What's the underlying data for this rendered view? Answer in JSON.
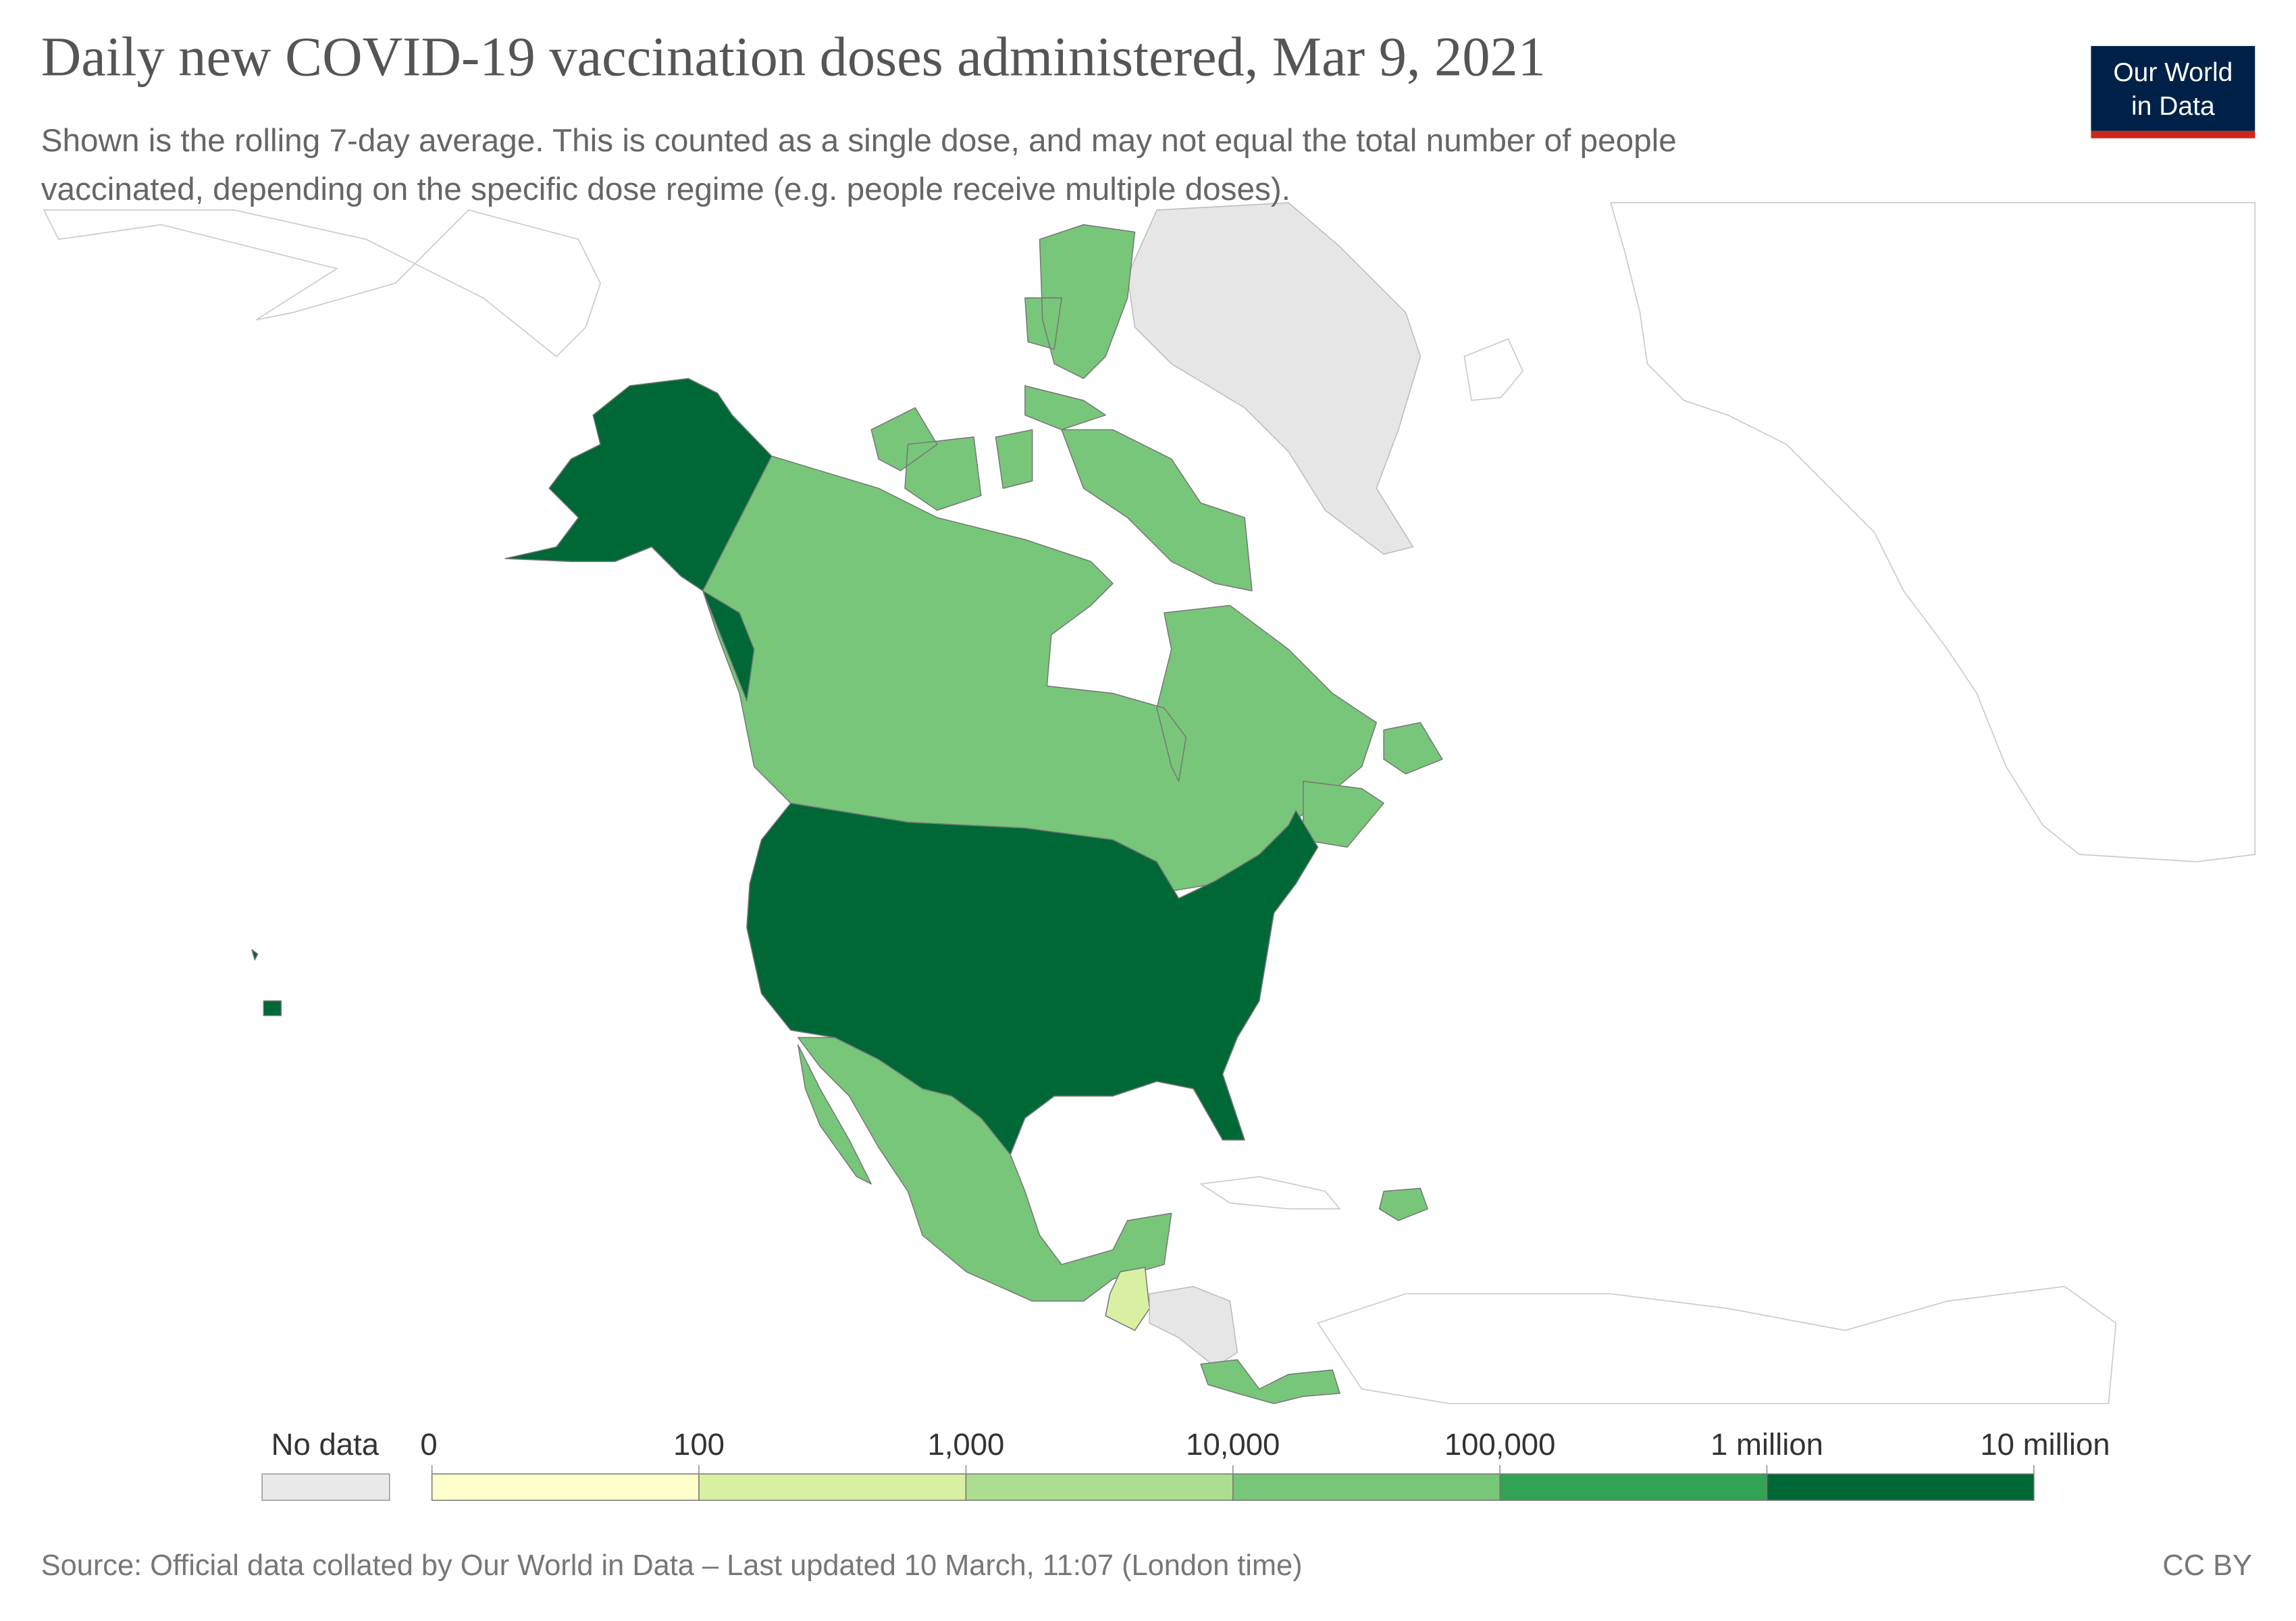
{
  "chart_data": {
    "type": "choropleth",
    "title": "Daily new COVID-19 vaccination doses administered, Mar 9, 2021",
    "subtitle": [
      "Shown is the rolling 7-day average. This is counted as a single dose, and may not equal the total number of people",
      "vaccinated, depending on the specific dose regime (e.g. people receive multiple doses)."
    ],
    "logo": [
      "Our World",
      "in Data"
    ],
    "legend": {
      "no_data_label": "No data",
      "no_data_color": "#e9e9e9",
      "ticks": [
        0,
        100,
        {
          "value": 1000,
          "label": "1,000"
        },
        {
          "value": 10000,
          "label": "10,000"
        },
        {
          "value": 100000,
          "label": "100,000"
        },
        {
          "value": 1000000,
          "label": "1 million"
        },
        {
          "value": 10000000,
          "label": "10 million"
        }
      ],
      "colors": [
        "#ffffcc",
        "#d9f0a3",
        "#addd8e",
        "#78c679",
        "#31a354",
        "#006837"
      ]
    },
    "source": "Source: Official data collated by Our World in Data – Last updated 10 March, 11:07 (London time)",
    "license": "CC BY"
  }
}
